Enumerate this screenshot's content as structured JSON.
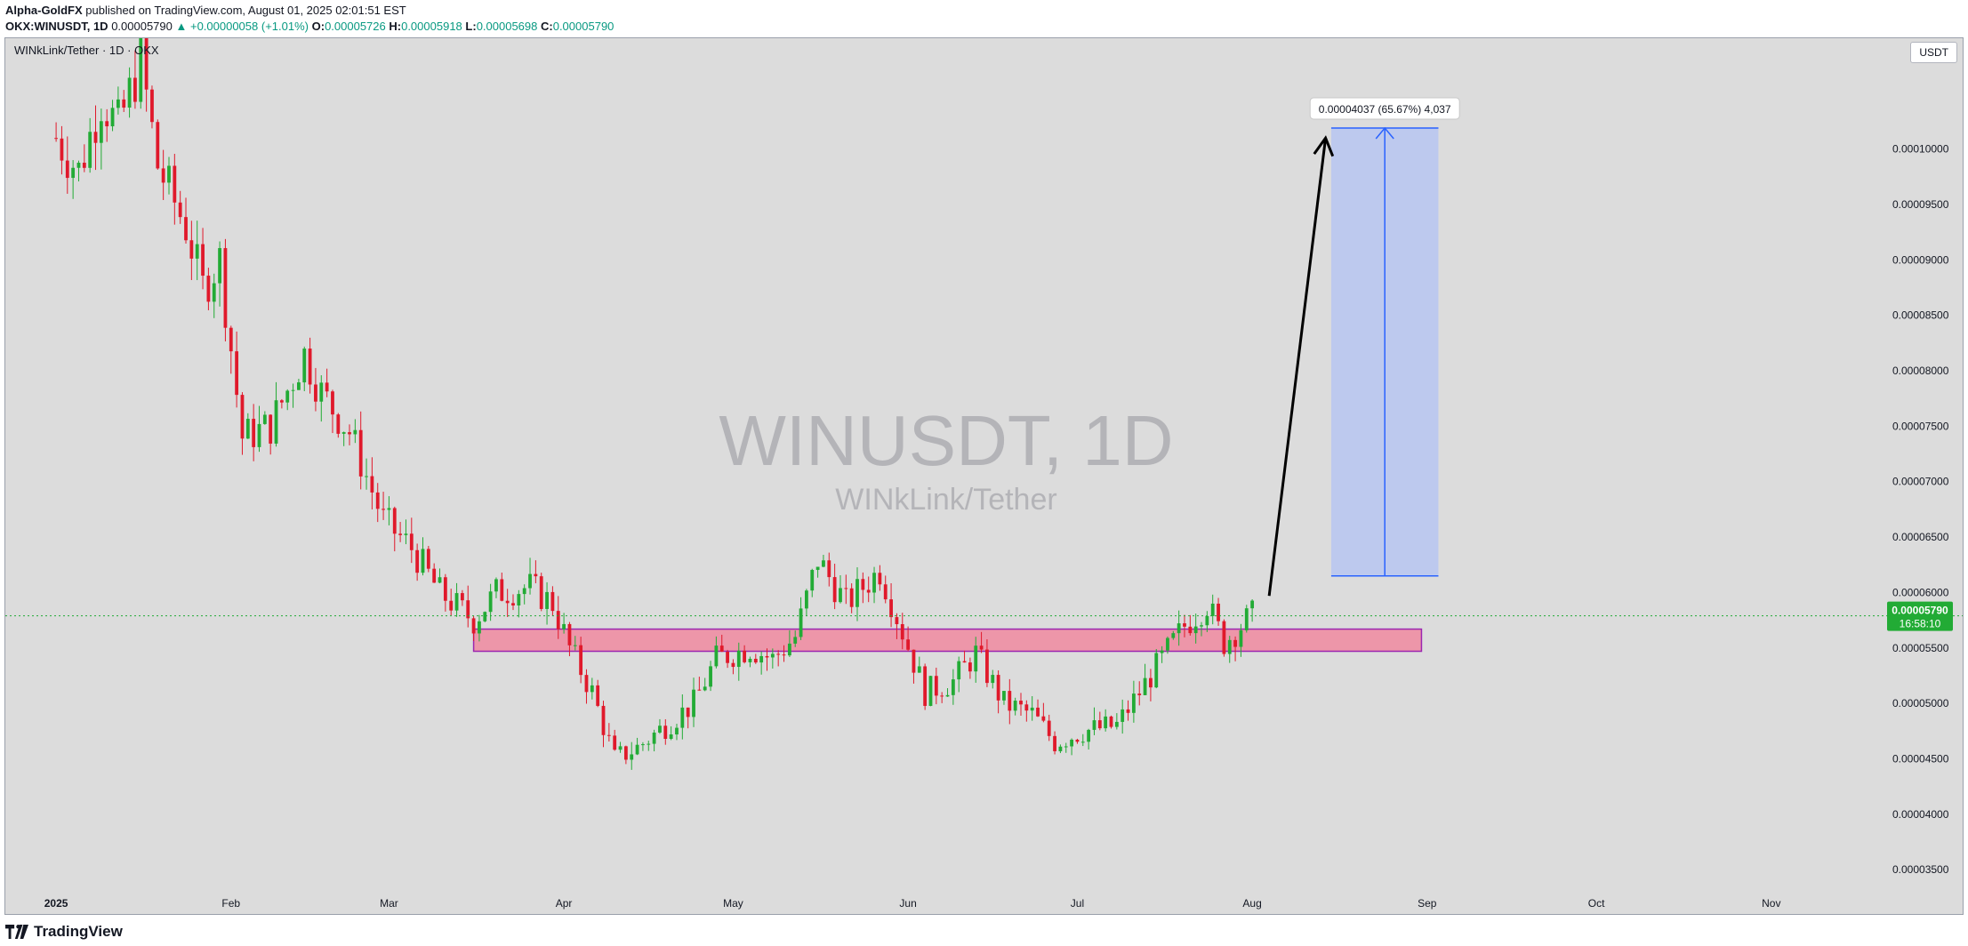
{
  "header": {
    "author": "Alpha-GoldFX",
    "published_text": "published on TradingView.com, August 01, 2025 02:01:51 EST",
    "symbol_line": "OKX:WINUSDT, 1D",
    "last": "0.00005790",
    "change": "▲ +0.00000058 (+1.01%)",
    "o_label": "O:",
    "o_value": "0.00005726",
    "h_label": "H:",
    "h_value": "0.00005918",
    "l_label": "L:",
    "l_value": "0.00005698",
    "c_label": "C:",
    "c_value": "0.00005790"
  },
  "pair_label": "WINkLink/Tether · 1D · OKX",
  "quote_currency": "USDT",
  "watermark": {
    "line1": "WINUSDT, 1D",
    "line2": "WINkLink/Tether"
  },
  "footer": {
    "brand": "TradingView"
  },
  "colors": {
    "up": "#089981",
    "down": "#f23645",
    "bull_candle": "#22ab35",
    "bear_candle": "#e0192b",
    "zone_fill": "#f08aa0",
    "zone_border": "#9c27b0",
    "target_fill": "#b9c6ef",
    "target_line": "#2962ff",
    "price_tag": "#22ab35"
  },
  "chart_data": {
    "type": "candlestick",
    "y_min": 3.1e-05,
    "y_max": 0.00011,
    "x_start": "2024-12-23",
    "x_end": "2025-11-19",
    "y_ticks": [
      "0.00003500",
      "0.00004000",
      "0.00004500",
      "0.00005000",
      "0.00005500",
      "0.00006000",
      "0.00006500",
      "0.00007000",
      "0.00007500",
      "0.00008000",
      "0.00008500",
      "0.00009000",
      "0.00009500",
      "0.00010000"
    ],
    "x_ticks": [
      {
        "label": "2025",
        "date": "2025-01-01"
      },
      {
        "label": "Feb",
        "date": "2025-02-01"
      },
      {
        "label": "Mar",
        "date": "2025-03-01"
      },
      {
        "label": "Apr",
        "date": "2025-04-01"
      },
      {
        "label": "May",
        "date": "2025-05-01"
      },
      {
        "label": "Jun",
        "date": "2025-06-01"
      },
      {
        "label": "Jul",
        "date": "2025-07-01"
      },
      {
        "label": "Aug",
        "date": "2025-08-01"
      },
      {
        "label": "Sep",
        "date": "2025-09-01"
      },
      {
        "label": "Oct",
        "date": "2025-10-01"
      },
      {
        "label": "Nov",
        "date": "2025-11-01"
      }
    ],
    "last_price": {
      "value": "0.00005790",
      "countdown": "16:58:10",
      "y": 5.79e-05
    },
    "support_zone": {
      "from": "2025-03-16",
      "to": "2025-08-31",
      "low": 5.47e-05,
      "high": 5.67e-05
    },
    "target_box": {
      "from": "2025-08-15",
      "to": "2025-09-03",
      "low": 6.15e-05,
      "high": 0.0001019,
      "label": "0.00004037 (65.67%) 4,037"
    },
    "projection_arrow": {
      "from_date": "2025-08-04",
      "from_y": 5.97e-05,
      "to_date": "2025-08-14",
      "to_y": 0.000101
    },
    "close_anchors": [
      [
        "2025-01-01",
        0.000101
      ],
      [
        "2025-01-05",
        9.8e-05
      ],
      [
        "2025-01-09",
        0.0001045
      ],
      [
        "2025-01-12",
        0.000102
      ],
      [
        "2025-01-16",
        0.000108
      ],
      [
        "2025-01-19",
        9.85e-05
      ],
      [
        "2025-01-24",
        9.3e-05
      ],
      [
        "2025-01-27",
        8.75e-05
      ],
      [
        "2025-01-30",
        9e-05
      ],
      [
        "2025-02-03",
        7.4e-05
      ],
      [
        "2025-02-08",
        7.5e-05
      ],
      [
        "2025-02-14",
        8.15e-05
      ],
      [
        "2025-02-17",
        7.8e-05
      ],
      [
        "2025-02-22",
        7.45e-05
      ],
      [
        "2025-02-28",
        6.65e-05
      ],
      [
        "2025-03-05",
        6.4e-05
      ],
      [
        "2025-03-10",
        6e-05
      ],
      [
        "2025-03-16",
        5.75e-05
      ],
      [
        "2025-03-20",
        6e-05
      ],
      [
        "2025-03-26",
        6.05e-05
      ],
      [
        "2025-03-30",
        5.9e-05
      ],
      [
        "2025-04-02",
        5.5e-05
      ],
      [
        "2025-04-06",
        5.1e-05
      ],
      [
        "2025-04-10",
        4.5e-05
      ],
      [
        "2025-04-14",
        4.6e-05
      ],
      [
        "2025-04-19",
        4.8e-05
      ],
      [
        "2025-04-24",
        5e-05
      ],
      [
        "2025-04-28",
        5.4e-05
      ],
      [
        "2025-05-04",
        5.5e-05
      ],
      [
        "2025-05-08",
        5.4e-05
      ],
      [
        "2025-05-12",
        5.6e-05
      ],
      [
        "2025-05-16",
        6.3e-05
      ],
      [
        "2025-05-21",
        5.9e-05
      ],
      [
        "2025-05-27",
        6.2e-05
      ],
      [
        "2025-05-31",
        5.65e-05
      ],
      [
        "2025-06-04",
        5.1e-05
      ],
      [
        "2025-06-09",
        5.2e-05
      ],
      [
        "2025-06-13",
        5.45e-05
      ],
      [
        "2025-06-18",
        5e-05
      ],
      [
        "2025-06-23",
        4.9e-05
      ],
      [
        "2025-06-27",
        4.65e-05
      ],
      [
        "2025-07-02",
        4.75e-05
      ],
      [
        "2025-07-08",
        4.8e-05
      ],
      [
        "2025-07-12",
        5.1e-05
      ],
      [
        "2025-07-16",
        5.4e-05
      ],
      [
        "2025-07-20",
        5.7e-05
      ],
      [
        "2025-07-24",
        5.9e-05
      ],
      [
        "2025-07-27",
        5.55e-05
      ],
      [
        "2025-07-31",
        5.75e-05
      ],
      [
        "2025-08-01",
        5.79e-05
      ]
    ]
  }
}
